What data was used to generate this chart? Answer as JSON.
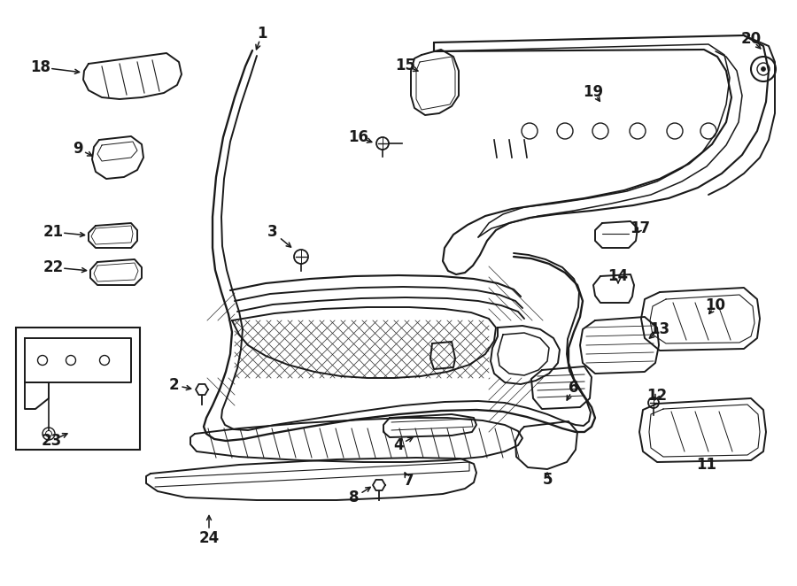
{
  "bg_color": "#ffffff",
  "line_color": "#1a1a1a",
  "figsize": [
    9.0,
    6.62
  ],
  "dpi": 100,
  "label_fontsize": 12,
  "label_fontweight": "bold"
}
